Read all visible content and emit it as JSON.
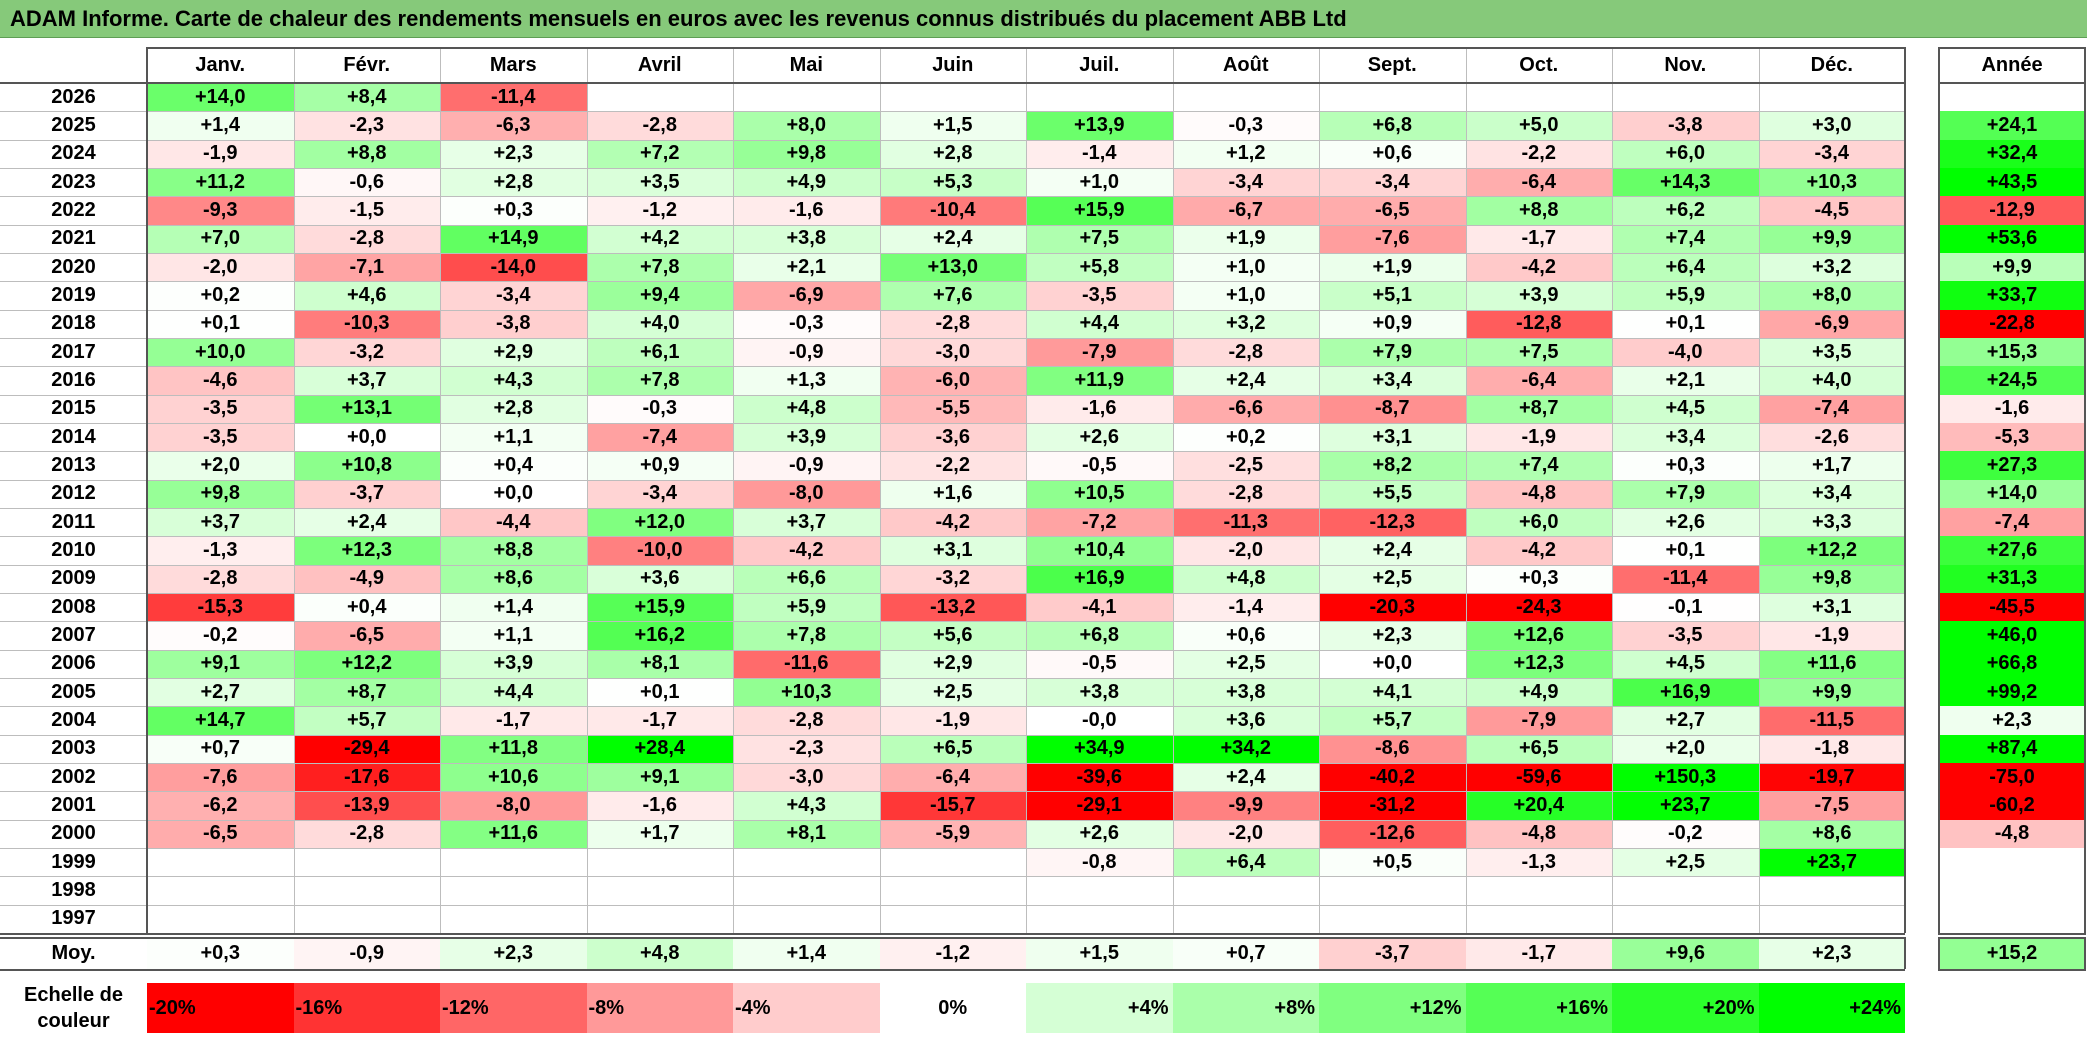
{
  "title": "ADAM Informe. Carte de chaleur des rendements mensuels en euros avec les revenus connus distribués du placement ABB Ltd",
  "chart_data": {
    "type": "heatmap",
    "title": "ADAM Informe. Carte de chaleur des rendements mensuels en euros avec les revenus connus distribués du placement ABB Ltd",
    "months": [
      "Janv.",
      "Févr.",
      "Mars",
      "Avril",
      "Mai",
      "Juin",
      "Juil.",
      "Août",
      "Sept.",
      "Oct.",
      "Nov.",
      "Déc."
    ],
    "year_header": "Année",
    "rows": [
      {
        "year": "2026",
        "values": [
          "+14,0",
          "+8,4",
          "-11,4",
          "",
          "",
          "",
          "",
          "",
          "",
          "",
          "",
          ""
        ],
        "annual": ""
      },
      {
        "year": "2025",
        "values": [
          "+1,4",
          "-2,3",
          "-6,3",
          "-2,8",
          "+8,0",
          "+1,5",
          "+13,9",
          "-0,3",
          "+6,8",
          "+5,0",
          "-3,8",
          "+3,0"
        ],
        "annual": "+24,1"
      },
      {
        "year": "2024",
        "values": [
          "-1,9",
          "+8,8",
          "+2,3",
          "+7,2",
          "+9,8",
          "+2,8",
          "-1,4",
          "+1,2",
          "+0,6",
          "-2,2",
          "+6,0",
          "-3,4"
        ],
        "annual": "+32,4"
      },
      {
        "year": "2023",
        "values": [
          "+11,2",
          "-0,6",
          "+2,8",
          "+3,5",
          "+4,9",
          "+5,3",
          "+1,0",
          "-3,4",
          "-3,4",
          "-6,4",
          "+14,3",
          "+10,3"
        ],
        "annual": "+43,5"
      },
      {
        "year": "2022",
        "values": [
          "-9,3",
          "-1,5",
          "+0,3",
          "-1,2",
          "-1,6",
          "-10,4",
          "+15,9",
          "-6,7",
          "-6,5",
          "+8,8",
          "+6,2",
          "-4,5"
        ],
        "annual": "-12,9"
      },
      {
        "year": "2021",
        "values": [
          "+7,0",
          "-2,8",
          "+14,9",
          "+4,2",
          "+3,8",
          "+2,4",
          "+7,5",
          "+1,9",
          "-7,6",
          "-1,7",
          "+7,4",
          "+9,9"
        ],
        "annual": "+53,6"
      },
      {
        "year": "2020",
        "values": [
          "-2,0",
          "-7,1",
          "-14,0",
          "+7,8",
          "+2,1",
          "+13,0",
          "+5,8",
          "+1,0",
          "+1,9",
          "-4,2",
          "+6,4",
          "+3,2"
        ],
        "annual": "+9,9"
      },
      {
        "year": "2019",
        "values": [
          "+0,2",
          "+4,6",
          "-3,4",
          "+9,4",
          "-6,9",
          "+7,6",
          "-3,5",
          "+1,0",
          "+5,1",
          "+3,9",
          "+5,9",
          "+8,0"
        ],
        "annual": "+33,7"
      },
      {
        "year": "2018",
        "values": [
          "+0,1",
          "-10,3",
          "-3,8",
          "+4,0",
          "-0,3",
          "-2,8",
          "+4,4",
          "+3,2",
          "+0,9",
          "-12,8",
          "+0,1",
          "-6,9"
        ],
        "annual": "-22,8"
      },
      {
        "year": "2017",
        "values": [
          "+10,0",
          "-3,2",
          "+2,9",
          "+6,1",
          "-0,9",
          "-3,0",
          "-7,9",
          "-2,8",
          "+7,9",
          "+7,5",
          "-4,0",
          "+3,5"
        ],
        "annual": "+15,3"
      },
      {
        "year": "2016",
        "values": [
          "-4,6",
          "+3,7",
          "+4,3",
          "+7,8",
          "+1,3",
          "-6,0",
          "+11,9",
          "+2,4",
          "+3,4",
          "-6,4",
          "+2,1",
          "+4,0"
        ],
        "annual": "+24,5"
      },
      {
        "year": "2015",
        "values": [
          "-3,5",
          "+13,1",
          "+2,8",
          "-0,3",
          "+4,8",
          "-5,5",
          "-1,6",
          "-6,6",
          "-8,7",
          "+8,7",
          "+4,5",
          "-7,4"
        ],
        "annual": "-1,6"
      },
      {
        "year": "2014",
        "values": [
          "-3,5",
          "+0,0",
          "+1,1",
          "-7,4",
          "+3,9",
          "-3,6",
          "+2,6",
          "+0,2",
          "+3,1",
          "-1,9",
          "+3,4",
          "-2,6"
        ],
        "annual": "-5,3"
      },
      {
        "year": "2013",
        "values": [
          "+2,0",
          "+10,8",
          "+0,4",
          "+0,9",
          "-0,9",
          "-2,2",
          "-0,5",
          "-2,5",
          "+8,2",
          "+7,4",
          "+0,3",
          "+1,7"
        ],
        "annual": "+27,3"
      },
      {
        "year": "2012",
        "values": [
          "+9,8",
          "-3,7",
          "+0,0",
          "-3,4",
          "-8,0",
          "+1,6",
          "+10,5",
          "-2,8",
          "+5,5",
          "-4,8",
          "+7,9",
          "+3,4"
        ],
        "annual": "+14,0"
      },
      {
        "year": "2011",
        "values": [
          "+3,7",
          "+2,4",
          "-4,4",
          "+12,0",
          "+3,7",
          "-4,2",
          "-7,2",
          "-11,3",
          "-12,3",
          "+6,0",
          "+2,6",
          "+3,3"
        ],
        "annual": "-7,4"
      },
      {
        "year": "2010",
        "values": [
          "-1,3",
          "+12,3",
          "+8,8",
          "-10,0",
          "-4,2",
          "+3,1",
          "+10,4",
          "-2,0",
          "+2,4",
          "-4,2",
          "+0,1",
          "+12,2"
        ],
        "annual": "+27,6"
      },
      {
        "year": "2009",
        "values": [
          "-2,8",
          "-4,9",
          "+8,6",
          "+3,6",
          "+6,6",
          "-3,2",
          "+16,9",
          "+4,8",
          "+2,5",
          "+0,3",
          "-11,4",
          "+9,8"
        ],
        "annual": "+31,3"
      },
      {
        "year": "2008",
        "values": [
          "-15,3",
          "+0,4",
          "+1,4",
          "+15,9",
          "+5,9",
          "-13,2",
          "-4,1",
          "-1,4",
          "-20,3",
          "-24,3",
          "-0,1",
          "+3,1"
        ],
        "annual": "-45,5"
      },
      {
        "year": "2007",
        "values": [
          "-0,2",
          "-6,5",
          "+1,1",
          "+16,2",
          "+7,8",
          "+5,6",
          "+6,8",
          "+0,6",
          "+2,3",
          "+12,6",
          "-3,5",
          "-1,9"
        ],
        "annual": "+46,0"
      },
      {
        "year": "2006",
        "values": [
          "+9,1",
          "+12,2",
          "+3,9",
          "+8,1",
          "-11,6",
          "+2,9",
          "-0,5",
          "+2,5",
          "+0,0",
          "+12,3",
          "+4,5",
          "+11,6"
        ],
        "annual": "+66,8"
      },
      {
        "year": "2005",
        "values": [
          "+2,7",
          "+8,7",
          "+4,4",
          "+0,1",
          "+10,3",
          "+2,5",
          "+3,8",
          "+3,8",
          "+4,1",
          "+4,9",
          "+16,9",
          "+9,9"
        ],
        "annual": "+99,2"
      },
      {
        "year": "2004",
        "values": [
          "+14,7",
          "+5,7",
          "-1,7",
          "-1,7",
          "-2,8",
          "-1,9",
          "-0,0",
          "+3,6",
          "+5,7",
          "-7,9",
          "+2,7",
          "-11,5"
        ],
        "annual": "+2,3"
      },
      {
        "year": "2003",
        "values": [
          "+0,7",
          "-29,4",
          "+11,8",
          "+28,4",
          "-2,3",
          "+6,5",
          "+34,9",
          "+34,2",
          "-8,6",
          "+6,5",
          "+2,0",
          "-1,8"
        ],
        "annual": "+87,4"
      },
      {
        "year": "2002",
        "values": [
          "-7,6",
          "-17,6",
          "+10,6",
          "+9,1",
          "-3,0",
          "-6,4",
          "-39,6",
          "+2,4",
          "-40,2",
          "-59,6",
          "+150,3",
          "-19,7"
        ],
        "annual": "-75,0"
      },
      {
        "year": "2001",
        "values": [
          "-6,2",
          "-13,9",
          "-8,0",
          "-1,6",
          "+4,3",
          "-15,7",
          "-29,1",
          "-9,9",
          "-31,2",
          "+20,4",
          "+23,7",
          "-7,5"
        ],
        "annual": "-60,2"
      },
      {
        "year": "2000",
        "values": [
          "-6,5",
          "-2,8",
          "+11,6",
          "+1,7",
          "+8,1",
          "-5,9",
          "+2,6",
          "-2,0",
          "-12,6",
          "-4,8",
          "-0,2",
          "+8,6"
        ],
        "annual": "-4,8"
      },
      {
        "year": "1999",
        "values": [
          "",
          "",
          "",
          "",
          "",
          "",
          "-0,8",
          "+6,4",
          "+0,5",
          "-1,3",
          "+2,5",
          "+23,7"
        ],
        "annual": ""
      },
      {
        "year": "1998",
        "values": [
          "",
          "",
          "",
          "",
          "",
          "",
          "",
          "",
          "",
          "",
          "",
          ""
        ],
        "annual": ""
      },
      {
        "year": "1997",
        "values": [
          "",
          "",
          "",
          "",
          "",
          "",
          "",
          "",
          "",
          "",
          "",
          ""
        ],
        "annual": ""
      }
    ],
    "average": {
      "label": "Moy.",
      "values": [
        "+0,3",
        "-0,9",
        "+2,3",
        "+4,8",
        "+1,4",
        "-1,2",
        "+1,5",
        "+0,7",
        "-3,7",
        "-1,7",
        "+9,6",
        "+2,3"
      ],
      "annual": "+15,2"
    },
    "scale": {
      "label_line1": "Echelle de",
      "label_line2": "couleur",
      "stops": [
        {
          "label": "-20%",
          "value": -20
        },
        {
          "label": "-16%",
          "value": -16
        },
        {
          "label": "-12%",
          "value": -12
        },
        {
          "label": "-8%",
          "value": -8
        },
        {
          "label": "-4%",
          "value": -4
        },
        {
          "label": "0%",
          "value": 0
        },
        {
          "label": "+4%",
          "value": 4
        },
        {
          "label": "+8%",
          "value": 8
        },
        {
          "label": "+12%",
          "value": 12
        },
        {
          "label": "+16%",
          "value": 16
        },
        {
          "label": "+20%",
          "value": 20
        },
        {
          "label": "+24%",
          "value": 24
        }
      ]
    },
    "colors": {
      "negative_max": "#ff0000",
      "neutral": "#ffffff",
      "positive_max": "#00ff00",
      "title_background": "#86c97a"
    }
  }
}
